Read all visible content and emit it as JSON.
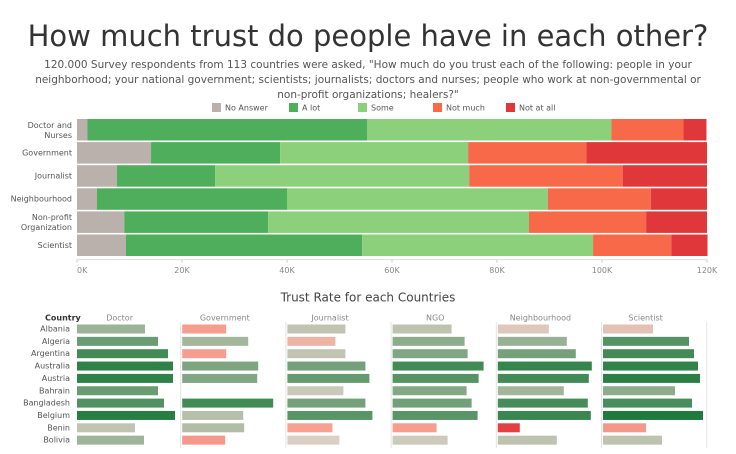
{
  "chart_data": [
    {
      "type": "stacked_bar",
      "orientation": "horizontal",
      "title": "How much trust do people have in each other?",
      "subtitle": "120.000 Survey respondents from 113 countries were asked, \"How much do you trust each of the following: people in your neighborhood; your national government; scientists; journalists; doctors and nurses; people who work at non-governmental or non-profit organizations; healers?\"",
      "legend": "top",
      "categories": [
        "Doctor and Nurses",
        "Government",
        "Journalist",
        "Neighbourhood",
        "Non-profit Organization",
        "Scientist"
      ],
      "series": [
        {
          "name": "No Answer",
          "color": "#bab0ac",
          "values": [
            2000,
            14100,
            7600,
            3800,
            9000,
            9300
          ]
        },
        {
          "name": "A lot",
          "color": "#4eae5b",
          "values": [
            53300,
            24600,
            18700,
            36200,
            27400,
            45000
          ]
        },
        {
          "name": "Some",
          "color": "#8dd07b",
          "values": [
            46500,
            35800,
            48400,
            49700,
            49700,
            44000
          ]
        },
        {
          "name": "Not much",
          "color": "#f8694a",
          "values": [
            13700,
            22500,
            29300,
            19600,
            22300,
            14900
          ]
        },
        {
          "name": "Not at all",
          "color": "#e0383a",
          "values": [
            4400,
            23000,
            16000,
            10700,
            11600,
            6900
          ]
        }
      ],
      "xlim": [
        0,
        120000
      ],
      "xticks": [
        {
          "value": 0,
          "label": "0K"
        },
        {
          "value": 20000,
          "label": "20K"
        },
        {
          "value": 40000,
          "label": "40K"
        },
        {
          "value": 60000,
          "label": "60K"
        },
        {
          "value": 80000,
          "label": "80K"
        },
        {
          "value": 100000,
          "label": "100K"
        },
        {
          "value": 120000,
          "label": "120K"
        }
      ],
      "grid": false
    },
    {
      "type": "small_multiple_bar",
      "title": "Trust Rate for each Countries",
      "row_header": "Country",
      "categories": [
        "Albania",
        "Algeria",
        "Argentina",
        "Australia",
        "Austria",
        "Bahrain",
        "Bangladesh",
        "Belgium",
        "Benin",
        "Bolivia"
      ],
      "xlim": [
        0,
        100
      ],
      "color_scale": [
        {
          "value": 20,
          "color": "#e0383a"
        },
        {
          "value": 46,
          "color": "#f7a596"
        },
        {
          "value": 52,
          "color": "#d9cfc3"
        },
        {
          "value": 100,
          "color": "#1f7a3d"
        }
      ],
      "series": [
        {
          "name": "Doctor",
          "values": [
            68,
            81,
            91,
            96,
            96,
            81,
            87,
            98,
            58,
            67
          ]
        },
        {
          "name": "Government",
          "values": [
            44,
            66,
            44,
            76,
            75,
            null,
            91,
            61,
            62,
            43
          ]
        },
        {
          "name": "Journalist",
          "values": [
            58,
            48,
            58,
            78,
            82,
            56,
            78,
            85,
            45,
            52
          ]
        },
        {
          "name": "NGO",
          "values": [
            59,
            72,
            75,
            91,
            86,
            74,
            79,
            85,
            44,
            55
          ]
        },
        {
          "name": "Neighbourhood",
          "values": [
            51,
            69,
            78,
            94,
            91,
            66,
            90,
            93,
            22,
            59
          ]
        },
        {
          "name": "Scientist",
          "values": [
            50,
            86,
            91,
            95,
            97,
            72,
            89,
            100,
            43,
            59
          ]
        }
      ]
    }
  ]
}
